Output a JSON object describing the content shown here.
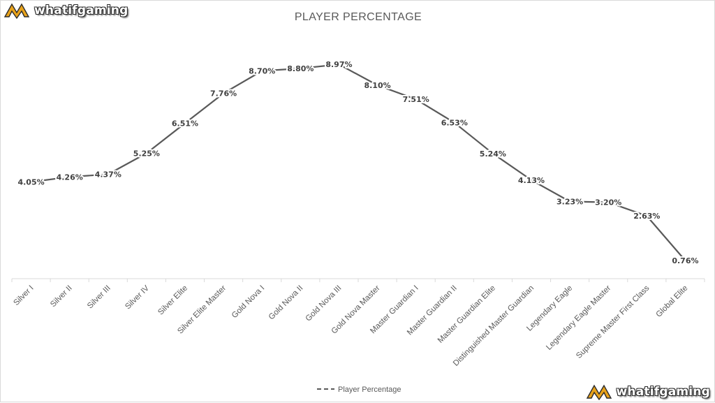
{
  "branding": {
    "logo_text": "whatifgaming"
  },
  "chart_data": {
    "type": "line",
    "title": "PLAYER PERCENTAGE",
    "xlabel": "",
    "ylabel": "",
    "categories": [
      "Silver I",
      "Silver II",
      "Silver III",
      "Silver IV",
      "Silver Elite",
      "Silver Elite Master",
      "Gold Nova I",
      "Gold Nova II",
      "Gold Nova III",
      "Gold Nova Master",
      "Master Guardian I",
      "Master Guardian II",
      "Master Guardian Elite",
      "Distinguished Master Guardian",
      "Legendary Eagle",
      "Legendary Eagle Master",
      "Supreme Master First Class",
      "Global Elite"
    ],
    "series": [
      {
        "name": "Player Percentage",
        "values": [
          4.05,
          4.26,
          4.37,
          5.25,
          6.51,
          7.76,
          8.7,
          8.8,
          8.97,
          8.1,
          7.51,
          6.53,
          5.24,
          4.13,
          3.23,
          3.2,
          2.63,
          0.76
        ],
        "labels": [
          "4.05%",
          "4.26%",
          "4.37%",
          "5.25%",
          "6.51%",
          "7.76%",
          "8.70%",
          "8.80%",
          "8.97%",
          "8.10%",
          "7.51%",
          "6.53%",
          "5.24%",
          "4.13%",
          "3.23%",
          "3.20%",
          "2.63%",
          "0.76%"
        ],
        "color": "#595959"
      }
    ],
    "ylim": [
      0,
      10
    ],
    "grid": false,
    "legend_position": "bottom"
  }
}
